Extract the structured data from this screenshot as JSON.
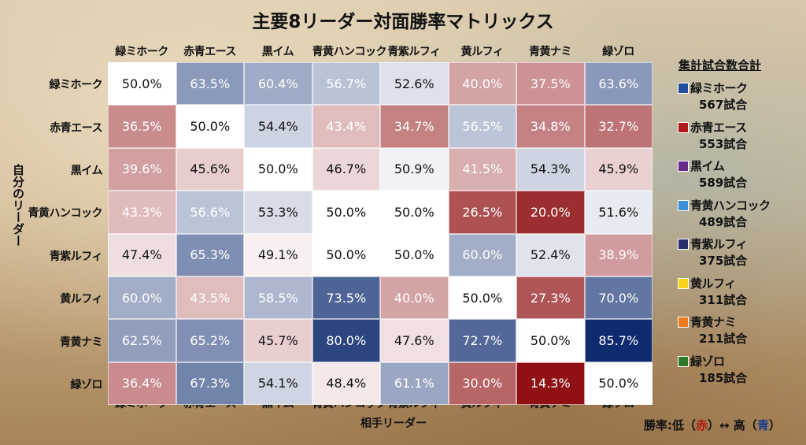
{
  "title": "主要8リーダー対面勝率マトリックス",
  "chart_data": {
    "type": "heatmap",
    "title": "主要8リーダー対面勝率マトリックス",
    "xlabel": "相手リーダー",
    "ylabel": "自分のリーダー",
    "columns": [
      "緑ミホーク",
      "赤青エース",
      "黒イム",
      "青黄ハンコック",
      "青紫ルフィ",
      "黄ルフィ",
      "青黄ナミ",
      "緑ゾロ"
    ],
    "rows": [
      "緑ミホーク",
      "赤青エース",
      "黒イム",
      "青黄ハンコック",
      "青紫ルフィ",
      "黄ルフィ",
      "青黄ナミ",
      "緑ゾロ"
    ],
    "values": [
      [
        50.0,
        63.5,
        60.4,
        56.7,
        52.6,
        40.0,
        37.5,
        63.6
      ],
      [
        36.5,
        50.0,
        54.4,
        43.4,
        34.7,
        56.5,
        34.8,
        32.7
      ],
      [
        39.6,
        45.6,
        50.0,
        46.7,
        50.9,
        41.5,
        54.3,
        45.9
      ],
      [
        43.3,
        56.6,
        53.3,
        50.0,
        50.0,
        26.5,
        20.0,
        51.6
      ],
      [
        47.4,
        65.3,
        49.1,
        50.0,
        50.0,
        60.0,
        52.4,
        38.9
      ],
      [
        60.0,
        43.5,
        58.5,
        73.5,
        40.0,
        50.0,
        27.3,
        70.0
      ],
      [
        62.5,
        65.2,
        45.7,
        80.0,
        47.6,
        72.7,
        50.0,
        85.7
      ],
      [
        36.4,
        67.3,
        54.1,
        48.4,
        61.1,
        30.0,
        14.3,
        50.0
      ]
    ],
    "labels": [
      [
        "50.0%",
        "63.5%",
        "60.4%",
        "56.7%",
        "52.6%",
        "40.0%",
        "37.5%",
        "63.6%"
      ],
      [
        "36.5%",
        "50.0%",
        "54.4%",
        "43.4%",
        "34.7%",
        "56.5%",
        "34.8%",
        "32.7%"
      ],
      [
        "39.6%",
        "45.6%",
        "50.0%",
        "46.7%",
        "50.9%",
        "41.5%",
        "54.3%",
        "45.9%"
      ],
      [
        "43.3%",
        "56.6%",
        "53.3%",
        "50.0%",
        "50.0%",
        "26.5%",
        "20.0%",
        "51.6%"
      ],
      [
        "47.4%",
        "65.3%",
        "49.1%",
        "50.0%",
        "50.0%",
        "60.0%",
        "52.4%",
        "38.9%"
      ],
      [
        "60.0%",
        "43.5%",
        "58.5%",
        "73.5%",
        "40.0%",
        "50.0%",
        "27.3%",
        "70.0%"
      ],
      [
        "62.5%",
        "65.2%",
        "45.7%",
        "80.0%",
        "47.6%",
        "72.7%",
        "50.0%",
        "85.7%"
      ],
      [
        "36.4%",
        "67.3%",
        "54.1%",
        "48.4%",
        "61.1%",
        "30.0%",
        "14.3%",
        "50.0%"
      ]
    ],
    "color_low": "#8f0f12",
    "color_mid": "#ffffff",
    "color_high": "#0c2a6e"
  },
  "legend": {
    "title": "集計試合数合計",
    "items": [
      {
        "name": "緑ミホーク",
        "count": "567試合",
        "color": "#1f4e9a"
      },
      {
        "name": "赤青エース",
        "count": "553試合",
        "color": "#b01a1a"
      },
      {
        "name": "黒イム",
        "count": "589試合",
        "color": "#6a2a8a"
      },
      {
        "name": "青黄ハンコック",
        "count": "489試合",
        "color": "#3a8fd6"
      },
      {
        "name": "青紫ルフィ",
        "count": "375試合",
        "color": "#2a2f6e"
      },
      {
        "name": "黄ルフィ",
        "count": "311試合",
        "color": "#f2d21a"
      },
      {
        "name": "青黄ナミ",
        "count": "211試合",
        "color": "#ef7a22"
      },
      {
        "name": "緑ゾロ",
        "count": "185試合",
        "color": "#2f7a2a"
      }
    ]
  },
  "footer": {
    "prefix": "勝率:低（",
    "low": "赤",
    "middle": "）↔ 高（",
    "high": "青",
    "suffix": "）"
  }
}
